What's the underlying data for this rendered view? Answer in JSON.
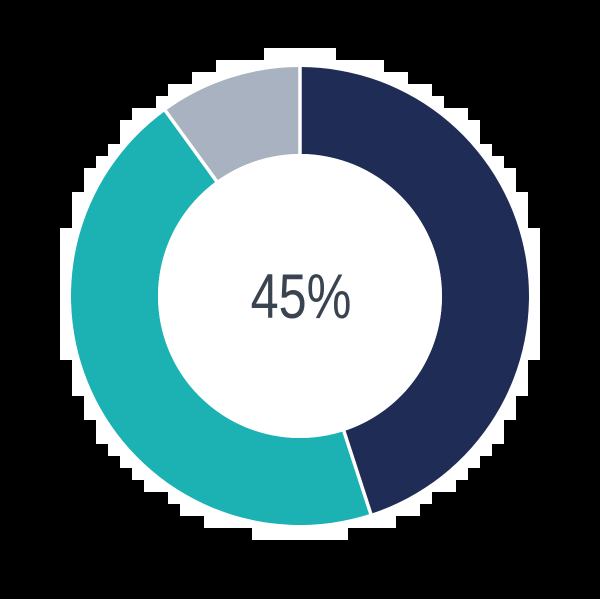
{
  "chart_data": {
    "type": "pie",
    "subtype": "donut",
    "title": "",
    "center_label": "45%",
    "segments": [
      {
        "name": "navy-segment",
        "value": 45,
        "color": "#1F2C55"
      },
      {
        "name": "teal-segment",
        "value": 45,
        "color": "#1CB2B3"
      },
      {
        "name": "gray-segment",
        "value": 10,
        "color": "#A9B2C0"
      }
    ],
    "start_angle_deg": 0,
    "direction": "clockwise",
    "inner_radius_ratio": 0.62,
    "legend": "none",
    "colors": {
      "background": "#000000",
      "ring_backing": "#FFFFFF",
      "inner_circle": "#FFFFFF",
      "divider": "#FFFFFF",
      "center_label": "#3A4350"
    }
  }
}
